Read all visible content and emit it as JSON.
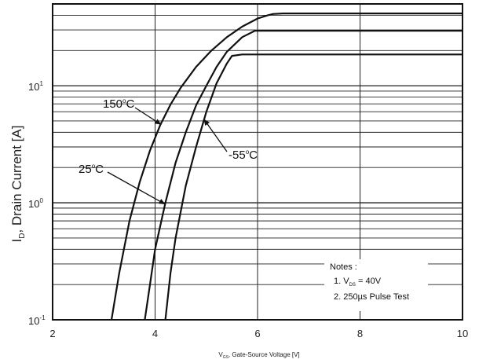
{
  "chart_data": {
    "type": "line",
    "xlabel": {
      "main": "V",
      "sub": "GS",
      "rest": ", Gate-Source Voltage [V]"
    },
    "ylabel": {
      "main": "I",
      "sub": "D",
      "rest": ", Drain Current [A]"
    },
    "xlim": [
      2,
      10
    ],
    "ylim": [
      0.1,
      50
    ],
    "yscale": "log",
    "grid": true,
    "x_ticks": [
      {
        "value": 2,
        "label": "2"
      },
      {
        "value": 4,
        "label": "4"
      },
      {
        "value": 6,
        "label": "6"
      },
      {
        "value": 8,
        "label": "8"
      },
      {
        "value": 10,
        "label": "10"
      }
    ],
    "y_ticks": [
      {
        "value": 0.1,
        "base": "10",
        "exp": "-1"
      },
      {
        "value": 1,
        "base": "10",
        "exp": "0"
      },
      {
        "value": 10,
        "base": "10",
        "exp": "1"
      }
    ],
    "series": [
      {
        "name": "150°C",
        "x": [
          3.15,
          3.3,
          3.5,
          3.7,
          3.9,
          4.1,
          4.3,
          4.5,
          4.8,
          5.1,
          5.4,
          5.7,
          6.0,
          6.2,
          6.3,
          6.5,
          8.0,
          10.0
        ],
        "y": [
          0.1,
          0.25,
          0.7,
          1.5,
          2.8,
          4.6,
          6.9,
          9.6,
          14.5,
          20.0,
          26.0,
          32.0,
          37.5,
          40.0,
          41.0,
          41.5,
          41.5,
          41.5
        ]
      },
      {
        "name": "25°C",
        "x": [
          3.8,
          3.9,
          4.0,
          4.2,
          4.4,
          4.6,
          4.8,
          5.0,
          5.2,
          5.4,
          5.7,
          5.95,
          6.0,
          8.0,
          10.0
        ],
        "y": [
          0.1,
          0.2,
          0.4,
          1.0,
          2.2,
          4.0,
          6.8,
          10.0,
          14.5,
          19.5,
          26.0,
          29.5,
          29.5,
          29.5,
          29.5
        ]
      },
      {
        "name": "-55°C",
        "x": [
          4.2,
          4.3,
          4.4,
          4.6,
          4.8,
          5.0,
          5.2,
          5.4,
          5.5,
          5.7,
          8.0,
          10.0
        ],
        "y": [
          0.1,
          0.25,
          0.5,
          1.4,
          3.0,
          6.0,
          10.5,
          15.5,
          18.0,
          18.5,
          18.5,
          18.5
        ]
      }
    ],
    "annotations": [
      {
        "series": "150°C",
        "label": "150",
        "sup": "o",
        "unit": "C"
      },
      {
        "series": "25°C",
        "label": "25",
        "sup": "o",
        "unit": "C"
      },
      {
        "series": "-55°C",
        "label": "-55",
        "sup": "o",
        "unit": "C"
      }
    ],
    "notes": {
      "title": "Notes :",
      "line1": {
        "prefix": "1. V",
        "sub": "DS",
        "rest": " = 40V"
      },
      "line2": "2. 250µs Pulse Test"
    }
  }
}
